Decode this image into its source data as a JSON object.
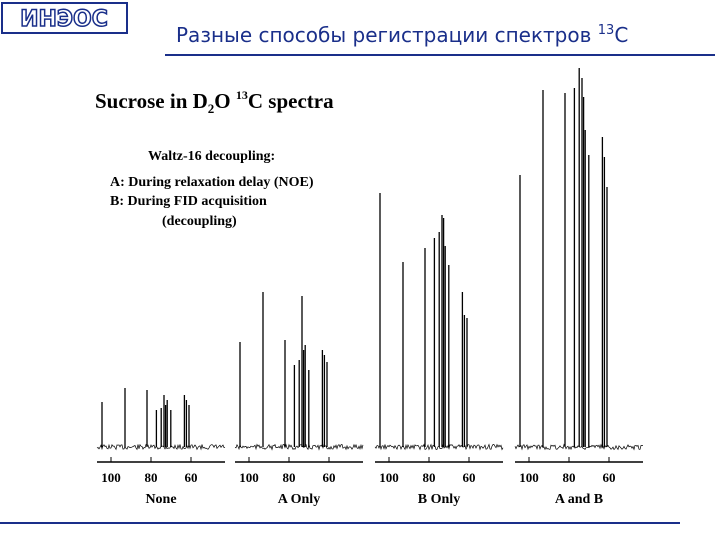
{
  "header": {
    "logo": "ИНЭОС",
    "title": "Разные способы регистрации спектров ",
    "title_sup": "13",
    "title_tail": "C"
  },
  "figure": {
    "title_parts": [
      "Sucrose in D",
      "2",
      "O ",
      "13",
      "C spectra"
    ],
    "legend": [
      "Waltz-16 decoupling:",
      "A: During relaxation delay (NOE)",
      "B: During FID acquisition",
      "(decoupling)"
    ],
    "xlim": [
      107,
      43
    ],
    "ylim": [
      0,
      380
    ],
    "ppm": [
      104.5,
      93,
      82,
      77.3,
      74.9,
      73.5,
      72.7,
      71.9,
      70.1,
      63.3,
      62.3,
      61
    ],
    "spectra": [
      {
        "name": "None",
        "xticks": [
          100,
          80,
          60
        ],
        "peaks": [
          45,
          59,
          57,
          37,
          39,
          52,
          42,
          47,
          37,
          52,
          47,
          42
        ]
      },
      {
        "name": "A Only",
        "xticks": [
          100,
          80,
          60
        ],
        "peaks": [
          105,
          155,
          107,
          82,
          87,
          151,
          97,
          102,
          77,
          97,
          92,
          85
        ]
      },
      {
        "name": "B Only",
        "xticks": [
          100,
          80,
          60
        ],
        "peaks": [
          254,
          185,
          199,
          209,
          215,
          232,
          229,
          201,
          182,
          155,
          132,
          129
        ]
      },
      {
        "name": "A and B",
        "xticks": [
          100,
          80,
          60
        ],
        "peaks": [
          272,
          357,
          354,
          359,
          379,
          369,
          350,
          317,
          292,
          310,
          290,
          260
        ]
      }
    ]
  }
}
